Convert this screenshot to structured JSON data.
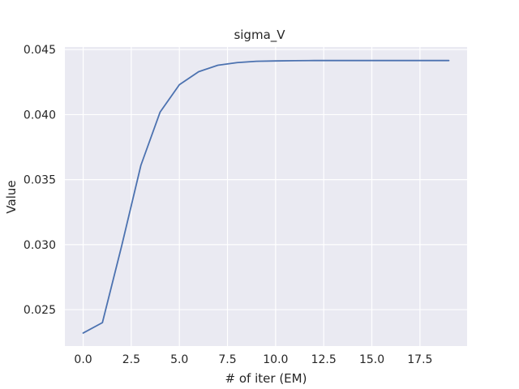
{
  "chart_data": {
    "type": "line",
    "title": "sigma_V",
    "xlabel": "# of iter (EM)",
    "ylabel": "Value",
    "xlim": [
      -0.95,
      19.95
    ],
    "ylim": [
      0.0222,
      0.0452
    ],
    "xticks": [
      0.0,
      2.5,
      5.0,
      7.5,
      10.0,
      12.5,
      15.0,
      17.5
    ],
    "xtick_labels": [
      "0.0",
      "2.5",
      "5.0",
      "7.5",
      "10.0",
      "12.5",
      "15.0",
      "17.5"
    ],
    "yticks": [
      0.025,
      0.03,
      0.035,
      0.04,
      0.045
    ],
    "ytick_labels": [
      "0.025",
      "0.030",
      "0.035",
      "0.040",
      "0.045"
    ],
    "grid": true,
    "background": "#eaeaf2",
    "grid_color": "#ffffff",
    "series": [
      {
        "color": "#4c72b0",
        "x": [
          0,
          1,
          2,
          3,
          4,
          5,
          6,
          7,
          8,
          9,
          10,
          11,
          12,
          13,
          14,
          15,
          16,
          17,
          18,
          19
        ],
        "values": [
          0.0232,
          0.024,
          0.0299,
          0.0361,
          0.0402,
          0.0423,
          0.0433,
          0.0438,
          0.044,
          0.0441,
          0.04413,
          0.04415,
          0.04416,
          0.04416,
          0.04416,
          0.04416,
          0.04416,
          0.04416,
          0.04416,
          0.04416
        ]
      }
    ]
  }
}
